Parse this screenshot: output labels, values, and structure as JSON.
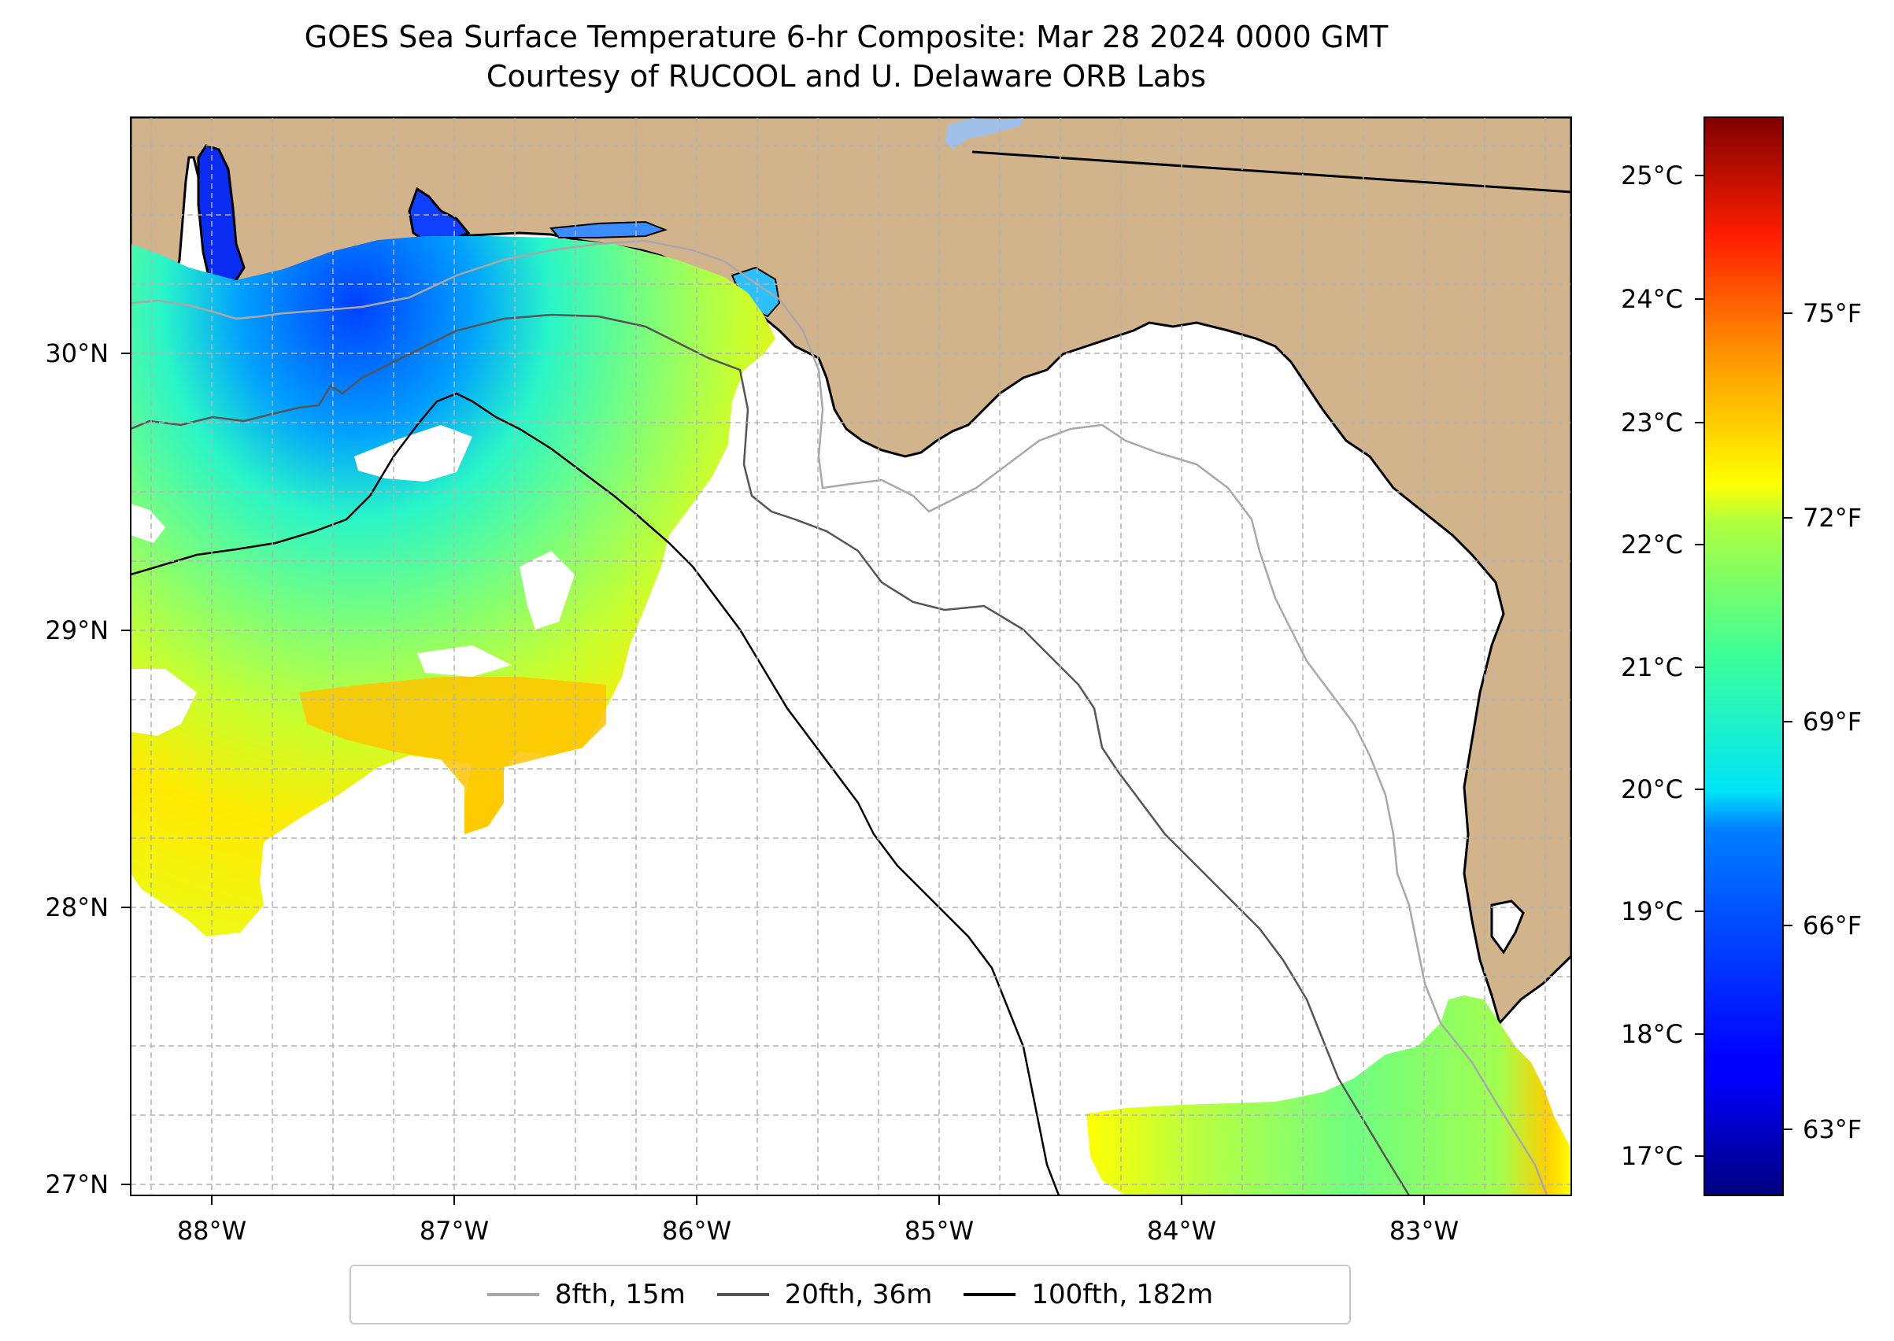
{
  "title": {
    "line1": "GOES Sea Surface Temperature 6-hr Composite: Mar 28 2024 0000 GMT",
    "line2": "Courtesy of RUCOOL and U. Delaware ORB Labs"
  },
  "map": {
    "land_color": "#d2b48c",
    "water_color": "#ffffff",
    "coastline_color": "#000000",
    "grid": "dashed light gray",
    "lon_ticks": [
      "88°W",
      "87°W",
      "86°W",
      "85°W",
      "84°W",
      "83°W"
    ],
    "lat_ticks": [
      "30°N",
      "29°N",
      "28°N",
      "27°N"
    ]
  },
  "colorbar": {
    "cmap": "jet",
    "celsius_ticks": [
      "25°C",
      "24°C",
      "23°C",
      "22°C",
      "21°C",
      "20°C",
      "19°C",
      "18°C",
      "17°C"
    ],
    "fahrenheit_ticks": [
      "75°F",
      "72°F",
      "69°F",
      "66°F",
      "63°F"
    ]
  },
  "legend": {
    "items": [
      {
        "label": "8fth, 15m",
        "color": "#a8a8a8"
      },
      {
        "label": "20fth, 36m",
        "color": "#555555"
      },
      {
        "label": "100fth, 182m",
        "color": "#000000"
      }
    ]
  }
}
